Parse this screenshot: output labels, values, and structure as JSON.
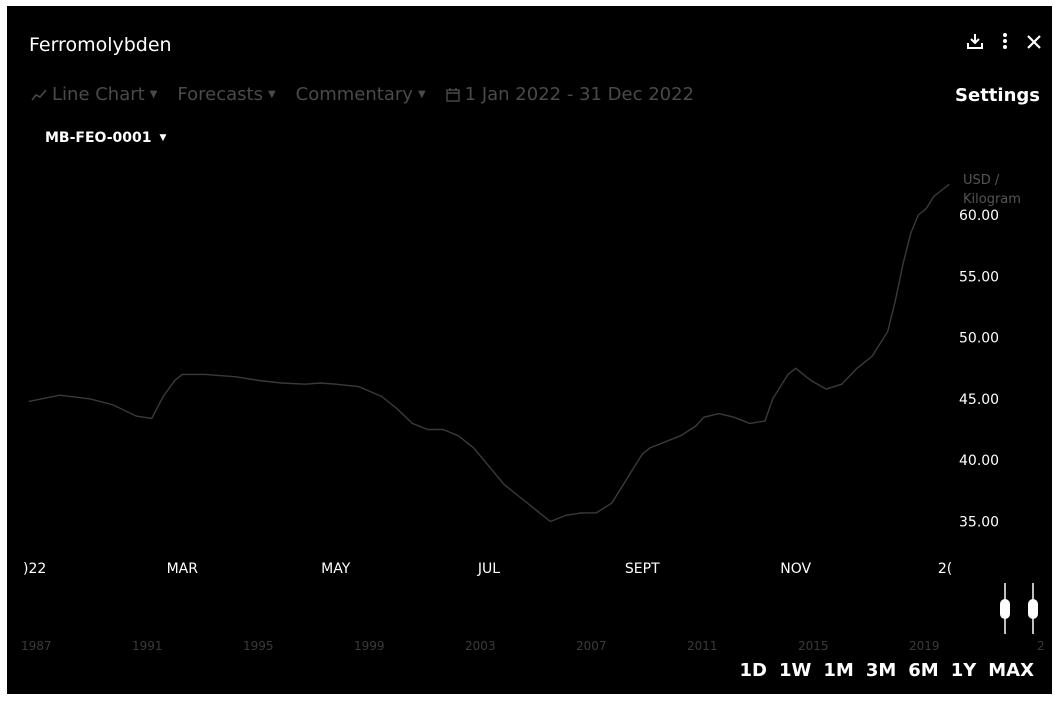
{
  "header": {
    "title": "Ferromolybden"
  },
  "toolbar": {
    "chart_type": "Line Chart",
    "forecasts": "Forecasts",
    "commentary": "Commentary",
    "date_range": "1 Jan 2022 - 31 Dec 2022",
    "settings": "Settings"
  },
  "series_selector": {
    "selected": "MB-FEO-0001"
  },
  "range_buttons": [
    "1D",
    "1W",
    "1M",
    "3M",
    "6M",
    "1Y",
    "MAX"
  ],
  "icons": [
    "download-icon",
    "more-vertical-icon",
    "close-icon",
    "line-chart-icon",
    "calendar-icon",
    "caret-down-icon"
  ],
  "colors": {
    "background": "#000000",
    "line": "#3a3a3a",
    "text": "#ffffff",
    "muted": "#4a4a4a"
  },
  "chart_data": {
    "type": "line",
    "unit_label": [
      "USD /",
      "Kilogram"
    ],
    "y_ticks": [
      60.0,
      55.0,
      50.0,
      45.0,
      40.0,
      35.0
    ],
    "y_tick_labels": [
      "60.00",
      "55.00",
      "50.00",
      "45.00",
      "40.00",
      "35.00"
    ],
    "ylim": [
      33.0,
      64.0
    ],
    "x_tick_labels": [
      ")22",
      "MAR",
      "MAY",
      "JUL",
      "SEPT",
      "NOV",
      "2("
    ],
    "x_tick_positions": [
      0.0,
      2.0,
      4.0,
      6.0,
      8.0,
      10.0,
      12.0
    ],
    "xlim": [
      0.0,
      12.0
    ],
    "navigator_labels": [
      "1987",
      "1991",
      "1995",
      "1999",
      "2003",
      "2007",
      "2011",
      "2015",
      "2019",
      "2"
    ],
    "grid": false,
    "legend": "none",
    "series": [
      {
        "x": [
          0.0,
          0.4,
          0.8,
          1.1,
          1.4,
          1.6,
          1.75,
          1.9,
          2.0,
          2.3,
          2.7,
          3.0,
          3.3,
          3.6,
          3.8,
          4.0,
          4.3,
          4.6,
          4.8,
          5.0,
          5.2,
          5.4,
          5.6,
          5.8,
          6.0,
          6.2,
          6.4,
          6.6,
          6.8,
          7.0,
          7.2,
          7.4,
          7.6,
          7.8,
          8.0,
          8.1,
          8.3,
          8.5,
          8.7,
          8.8,
          9.0,
          9.2,
          9.4,
          9.6,
          9.7,
          9.9,
          10.0,
          10.2,
          10.4,
          10.6,
          10.8,
          11.0,
          11.2,
          11.3,
          11.4,
          11.5,
          11.6,
          11.7,
          11.8,
          11.9,
          12.0
        ],
        "y": [
          44.8,
          45.3,
          45.0,
          44.5,
          43.6,
          43.4,
          45.2,
          46.5,
          47.0,
          47.0,
          46.8,
          46.5,
          46.3,
          46.2,
          46.3,
          46.2,
          46.0,
          45.2,
          44.2,
          43.0,
          42.5,
          42.5,
          42.0,
          41.0,
          39.5,
          38.0,
          37.0,
          36.0,
          35.0,
          35.5,
          35.7,
          35.7,
          36.5,
          38.5,
          40.5,
          41.0,
          41.5,
          42.0,
          42.8,
          43.5,
          43.8,
          43.5,
          43.0,
          43.2,
          45.0,
          47.0,
          47.5,
          46.5,
          45.8,
          46.2,
          47.5,
          48.5,
          50.5,
          53.0,
          56.0,
          58.5,
          60.0,
          60.5,
          61.5,
          62.0,
          62.5
        ]
      }
    ]
  }
}
